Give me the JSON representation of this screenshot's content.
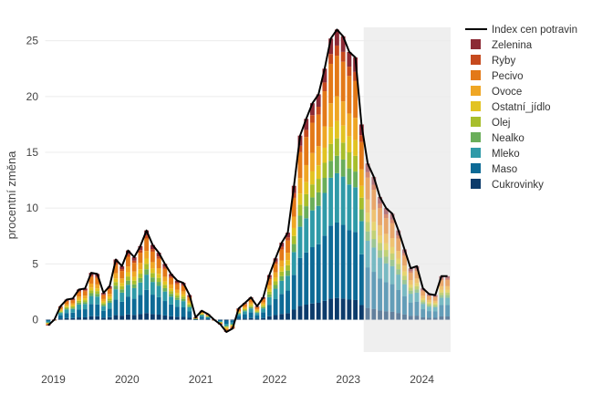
{
  "chart_data": {
    "type": "bar",
    "stacked": true,
    "title": "",
    "xlabel": "",
    "ylabel": "procentní změna",
    "ylim": [
      -2.9,
      26.2
    ],
    "y_ticks": [
      0,
      5,
      10,
      15,
      20,
      25
    ],
    "x_ticks": [
      {
        "label": "2019",
        "index": 0
      },
      {
        "label": "2020",
        "index": 12
      },
      {
        "label": "2021",
        "index": 24
      },
      {
        "label": "2022",
        "index": 36
      },
      {
        "label": "2023",
        "index": 48
      },
      {
        "label": "2024",
        "index": 60
      }
    ],
    "forecast_from_index": 52,
    "forecast_note": "shaded region marks projected months (Apr 2023 onward)",
    "series_order": [
      "Cukrovinky",
      "Maso",
      "Mleko",
      "Nealko",
      "Olej",
      "Ostatní_jídlo",
      "Ovoce",
      "Pecivo",
      "Ryby",
      "Zelenina"
    ],
    "colors": {
      "Cukrovinky": "#0c3b6b",
      "Maso": "#0d6a96",
      "Mleko": "#2f9aa8",
      "Nealko": "#6aae5a",
      "Olej": "#a7be2c",
      "Ostatní_jídlo": "#e2c322",
      "Ovoce": "#efa624",
      "Pecivo": "#e37918",
      "Ryby": "#c64a1e",
      "Zelenina": "#8c2a35",
      "line": "#000000",
      "forecast_bg": "#efefef",
      "grid": "#ececec",
      "axis_text": "#444444"
    },
    "months": [
      "2019-01",
      "2019-02",
      "2019-03",
      "2019-04",
      "2019-05",
      "2019-06",
      "2019-07",
      "2019-08",
      "2019-09",
      "2019-10",
      "2019-11",
      "2019-12",
      "2020-01",
      "2020-02",
      "2020-03",
      "2020-04",
      "2020-05",
      "2020-06",
      "2020-07",
      "2020-08",
      "2020-09",
      "2020-10",
      "2020-11",
      "2020-12",
      "2021-01",
      "2021-02",
      "2021-03",
      "2021-04",
      "2021-05",
      "2021-06",
      "2021-07",
      "2021-08",
      "2021-09",
      "2021-10",
      "2021-11",
      "2021-12",
      "2022-01",
      "2022-02",
      "2022-03",
      "2022-04",
      "2022-05",
      "2022-06",
      "2022-07",
      "2022-08",
      "2022-09",
      "2022-10",
      "2022-11",
      "2022-12",
      "2023-01",
      "2023-02",
      "2023-03",
      "2023-04",
      "2023-05",
      "2023-06",
      "2023-07",
      "2023-08",
      "2023-09",
      "2023-10",
      "2023-11",
      "2023-12",
      "2024-01",
      "2024-02",
      "2024-03",
      "2024-04",
      "2024-05",
      "2024-06"
    ],
    "index_line": [
      -0.5,
      0.0,
      1.2,
      1.8,
      1.9,
      2.7,
      2.8,
      4.2,
      4.1,
      2.4,
      3.0,
      5.4,
      4.8,
      6.2,
      5.6,
      6.6,
      8.0,
      6.7,
      6.0,
      5.0,
      4.1,
      3.5,
      3.3,
      2.2,
      0.2,
      0.8,
      0.5,
      0.0,
      -0.4,
      -1.1,
      -0.8,
      1.0,
      1.5,
      2.0,
      1.2,
      2.0,
      4.0,
      5.5,
      6.9,
      7.8,
      12.0,
      16.5,
      18.0,
      19.4,
      20.2,
      22.5,
      25.2,
      26.0,
      25.4,
      24.0,
      23.5,
      17.5,
      14.0,
      12.8,
      11.0,
      10.0,
      9.5,
      8.0,
      6.3,
      4.6,
      4.8,
      2.8,
      2.3,
      2.2,
      3.9,
      3.9
    ],
    "category_weights": [
      0.075,
      0.26,
      0.17,
      0.06,
      0.06,
      0.06,
      0.085,
      0.14,
      0.035,
      0.055
    ],
    "legend": [
      "Index cen potravin",
      "Zelenina",
      "Ryby",
      "Pecivo",
      "Ovoce",
      "Ostatní_jídlo",
      "Olej",
      "Nealko",
      "Mleko",
      "Maso",
      "Cukrovinky"
    ],
    "legend_position": "top-right, outside plot"
  }
}
